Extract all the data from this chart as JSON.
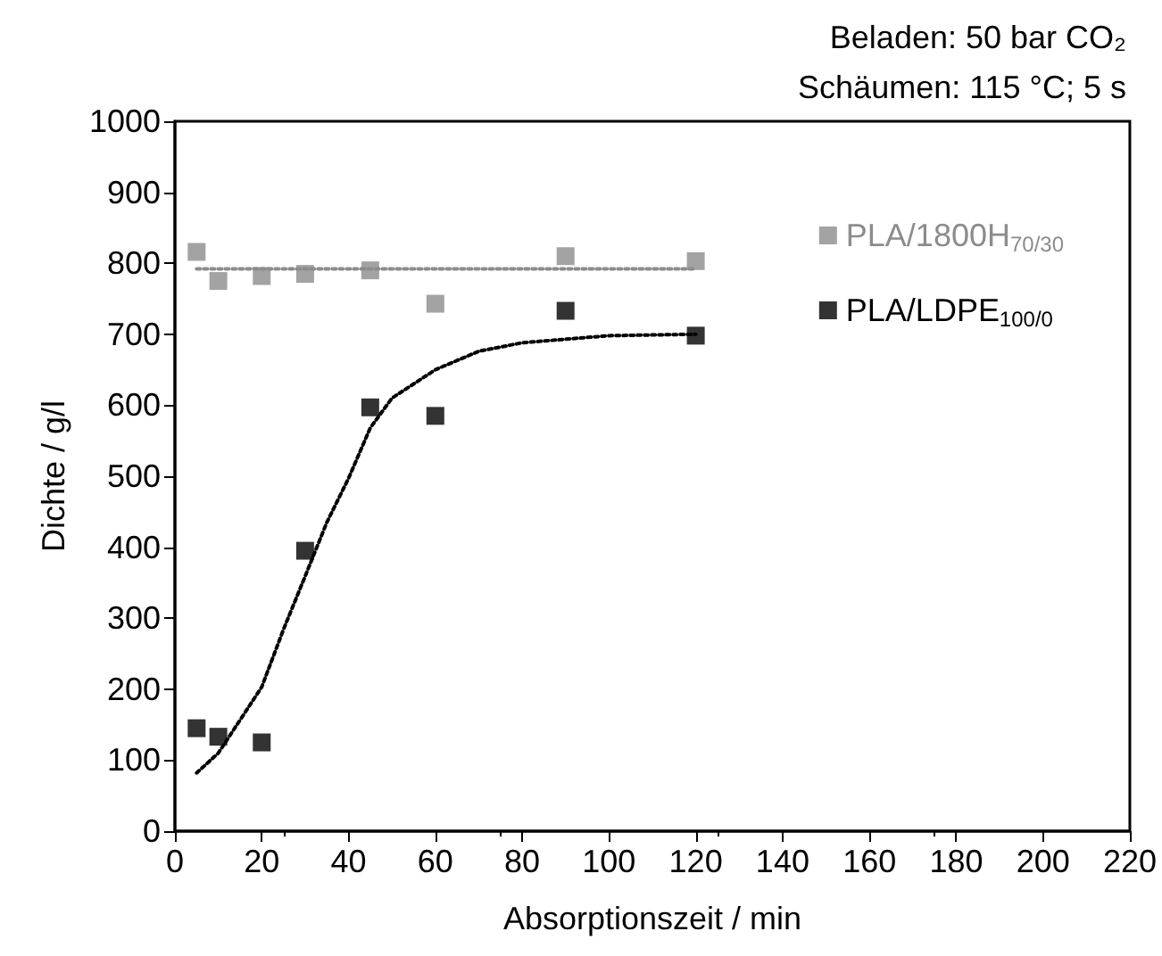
{
  "chart_data": {
    "type": "scatter",
    "xlabel": "Absorptionszeit / min",
    "ylabel": "Dichte / g/l",
    "annotations": [
      "Beladen: 50 bar CO₂",
      "Schäumen: 115 °C; 5 s"
    ],
    "xlim": [
      0,
      220
    ],
    "xticks": [
      0,
      20,
      40,
      60,
      80,
      100,
      120,
      140,
      160,
      180,
      200,
      220
    ],
    "ylim": [
      0,
      1000
    ],
    "yticks": [
      0,
      100,
      200,
      300,
      400,
      500,
      600,
      700,
      800,
      900,
      1000
    ],
    "grid": false,
    "legend": "top right",
    "marker": "square",
    "series": [
      {
        "name": "PLA/1800H$_{70/30}$",
        "color": "#8c8c8c",
        "x": [
          5,
          10,
          20,
          30,
          45,
          60,
          90,
          120
        ],
        "values": [
          816,
          775,
          782,
          785,
          790,
          743,
          810,
          803
        ]
      },
      {
        "name": "PLA/LDPE$_{100/0}$",
        "color": "#000000",
        "x": [
          5,
          10,
          20,
          30,
          45,
          60,
          90,
          120
        ],
        "values": [
          145,
          133,
          125,
          395,
          597,
          585,
          733,
          698
        ]
      },
      {
        "type": "line",
        "color": "#8c8c8c",
        "line_style": "dotted",
        "marker": "none",
        "x": [
          5,
          120
        ],
        "values": [
          792,
          792
        ]
      },
      {
        "type": "line",
        "color": "#000000",
        "line_style": "dotted",
        "marker": "none",
        "x": [
          5,
          10,
          20,
          25,
          30,
          35,
          40,
          45,
          50,
          60,
          70,
          80,
          100,
          120
        ],
        "values": [
          82,
          110,
          203,
          284,
          359,
          435,
          497,
          568,
          610,
          650,
          676,
          688,
          698,
          700
        ]
      }
    ]
  }
}
